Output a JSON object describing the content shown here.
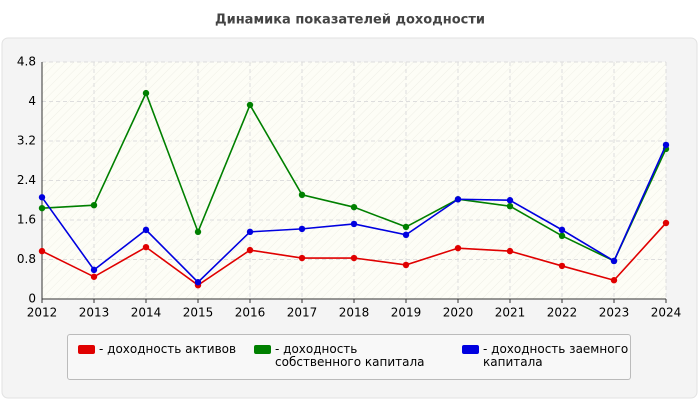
{
  "chart_data": {
    "type": "line",
    "title": "Динамика показателей доходности",
    "x": [
      2012,
      2013,
      2014,
      2015,
      2016,
      2017,
      2018,
      2019,
      2020,
      2021,
      2022,
      2023,
      2024
    ],
    "series": [
      {
        "name": "- доходность активов",
        "color": "#e00000",
        "values": [
          0.97,
          0.45,
          1.05,
          0.28,
          0.99,
          0.83,
          0.83,
          0.69,
          1.03,
          0.97,
          0.67,
          0.38,
          1.54
        ]
      },
      {
        "name": "- доходность собственного капитала",
        "color": "#008000",
        "values": [
          1.84,
          1.9,
          4.17,
          1.36,
          3.93,
          2.11,
          1.86,
          1.46,
          2.02,
          1.88,
          1.28,
          0.77,
          3.04
        ]
      },
      {
        "name": "- доходность заемного капитала",
        "color": "#0000e0",
        "values": [
          2.06,
          0.59,
          1.4,
          0.34,
          1.36,
          1.42,
          1.52,
          1.3,
          2.02,
          2.0,
          1.4,
          0.77,
          3.12
        ]
      }
    ],
    "xlim": [
      2012,
      2024
    ],
    "xticks": [
      2012,
      2013,
      2014,
      2015,
      2016,
      2017,
      2018,
      2019,
      2020,
      2021,
      2022,
      2023,
      2024
    ],
    "ylim": [
      0,
      4.8
    ],
    "yticks": [
      0,
      0.8,
      1.6,
      2.4,
      3.2,
      4,
      4.8
    ],
    "grid": true
  }
}
